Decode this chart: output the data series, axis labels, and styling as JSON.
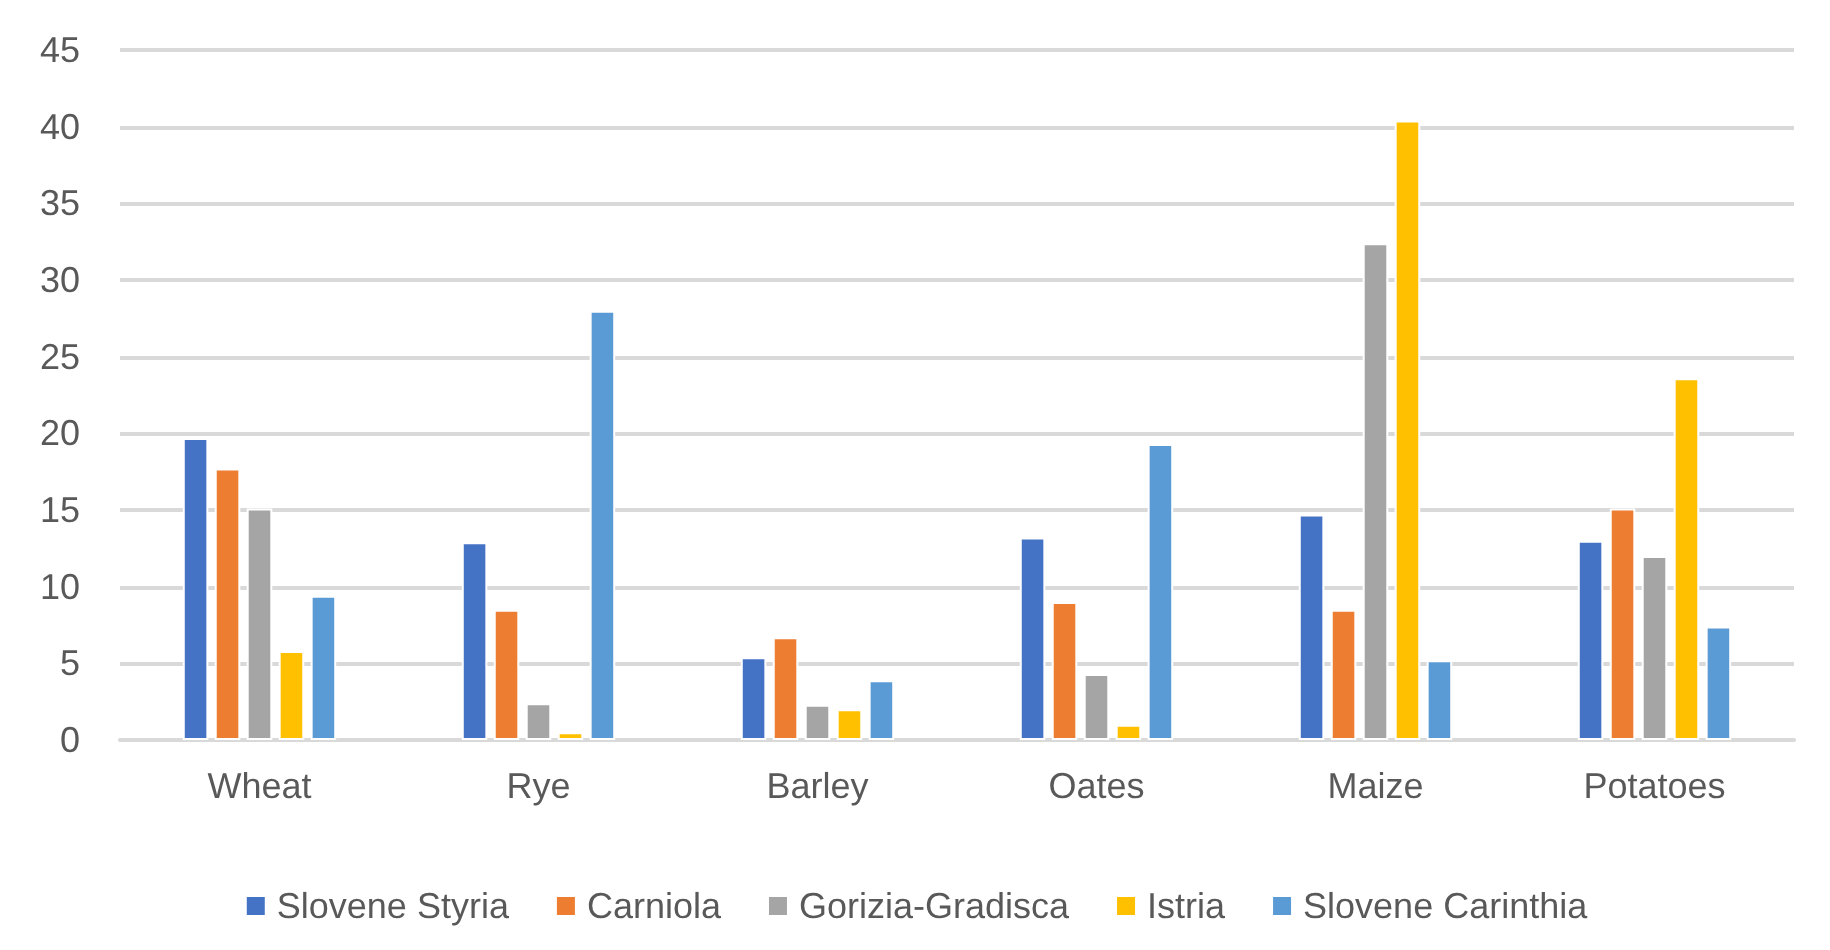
{
  "chart_data": {
    "type": "bar",
    "categories": [
      "Wheat",
      "Rye",
      "Barley",
      "Oates",
      "Maize",
      "Potatoes"
    ],
    "series": [
      {
        "name": "Slovene Styria",
        "color": "#4472c4",
        "values": [
          19.7,
          12.9,
          5.4,
          13.2,
          14.7,
          13.0
        ]
      },
      {
        "name": "Carniola",
        "color": "#ed7d31",
        "values": [
          17.7,
          8.5,
          6.7,
          9.0,
          8.5,
          15.1
        ]
      },
      {
        "name": "Gorizia-Gradisca",
        "color": "#a5a5a5",
        "values": [
          15.1,
          2.4,
          2.3,
          4.3,
          32.4,
          12.0
        ]
      },
      {
        "name": "Istria",
        "color": "#ffc000",
        "values": [
          5.8,
          0.5,
          2.0,
          1.0,
          40.4,
          23.6
        ]
      },
      {
        "name": "Slovene Carinthia",
        "color": "#5b9bd5",
        "values": [
          9.4,
          28.0,
          3.9,
          19.3,
          5.2,
          7.4
        ]
      }
    ],
    "ylim": [
      0,
      45
    ],
    "yticks": [
      0,
      5,
      10,
      15,
      20,
      25,
      30,
      35,
      40,
      45
    ],
    "grid": "y",
    "legend": "bottom"
  }
}
